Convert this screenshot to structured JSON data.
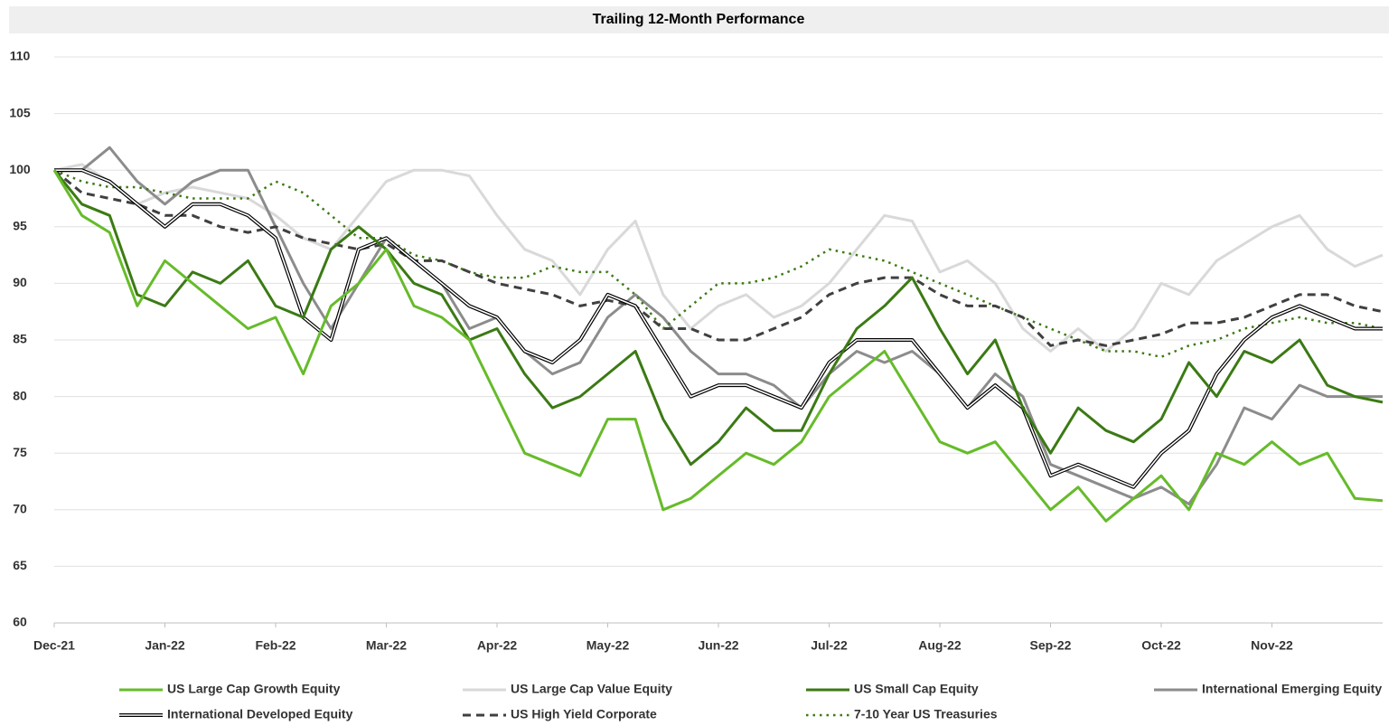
{
  "chart_data": {
    "type": "line",
    "title": "Trailing 12-Month Performance",
    "categories": [
      "Dec-21",
      null,
      null,
      null,
      "Jan-22",
      null,
      null,
      null,
      "Feb-22",
      null,
      null,
      null,
      "Mar-22",
      null,
      null,
      null,
      "Apr-22",
      null,
      null,
      null,
      "May-22",
      null,
      null,
      null,
      "Jun-22",
      null,
      null,
      null,
      "Jul-22",
      null,
      null,
      null,
      "Aug-22",
      null,
      null,
      null,
      "Sep-22",
      null,
      null,
      null,
      "Oct-22",
      null,
      null,
      null,
      "Nov-22",
      null,
      null,
      null,
      null
    ],
    "ylim": [
      60,
      110
    ],
    "yticks": [
      60,
      65,
      70,
      75,
      80,
      85,
      90,
      95,
      100,
      105,
      110
    ],
    "grid": true,
    "legend": "bottom",
    "series": [
      {
        "name": "US Large Cap Growth Equity",
        "color": "#66bb2a",
        "style": "solid",
        "values": [
          100,
          96,
          94.5,
          88,
          92,
          90,
          88,
          86,
          87,
          82,
          88,
          90,
          93,
          88,
          87,
          85,
          80,
          75,
          74,
          73,
          78,
          78,
          70,
          71,
          73,
          75,
          74,
          76,
          80,
          82,
          84,
          80,
          76,
          75,
          76,
          73,
          70,
          72,
          69,
          71,
          73,
          70,
          75,
          74,
          76,
          74,
          75,
          71,
          70.8
        ]
      },
      {
        "name": "US Large Cap Value Equity",
        "color": "#d9d9d9",
        "style": "solid",
        "values": [
          100,
          100.5,
          99,
          97,
          98,
          98.5,
          98,
          97.5,
          96,
          94,
          93,
          96,
          99,
          100,
          100,
          99.5,
          96,
          93,
          92,
          89,
          93,
          95.5,
          89,
          86,
          88,
          89,
          87,
          88,
          90,
          93,
          96,
          95.5,
          91,
          92,
          90,
          86,
          84,
          86,
          84,
          86,
          90,
          89,
          92,
          93.5,
          95,
          96,
          93,
          91.5,
          92.5
        ]
      },
      {
        "name": "US Small Cap Equity",
        "color": "#3b7a14",
        "style": "solid",
        "values": [
          100,
          97,
          96,
          89,
          88,
          91,
          90,
          92,
          88,
          87,
          93,
          95,
          93,
          90,
          89,
          85,
          86,
          82,
          79,
          80,
          82,
          84,
          78,
          74,
          76,
          79,
          77,
          77,
          82,
          86,
          88,
          90.5,
          86,
          82,
          85,
          79,
          75,
          79,
          77,
          76,
          78,
          83,
          80,
          84,
          83,
          85,
          81,
          80,
          79.5
        ]
      },
      {
        "name": "International Emerging Equity",
        "color": "#8c8c8c",
        "style": "solid",
        "values": [
          100,
          100,
          102,
          99,
          97,
          99,
          100,
          100,
          95,
          90,
          86,
          90,
          94,
          92,
          90,
          86,
          87,
          84,
          82,
          83,
          87,
          89,
          87,
          84,
          82,
          82,
          81,
          79,
          82,
          84,
          83,
          84,
          82,
          79,
          82,
          80,
          74,
          73,
          72,
          71,
          72,
          70.5,
          74,
          79,
          78,
          81,
          80,
          80,
          80
        ]
      },
      {
        "name": "International Developed Equity",
        "color": "#000000",
        "style": "double",
        "values": [
          100,
          100,
          99,
          97,
          95,
          97,
          97,
          96,
          94,
          87,
          85,
          93,
          94,
          92,
          90,
          88,
          87,
          84,
          83,
          85,
          89,
          88,
          84,
          80,
          81,
          81,
          80,
          79,
          83,
          85,
          85,
          85,
          82,
          79,
          81,
          79,
          73,
          74,
          73,
          72,
          75,
          77,
          82,
          85,
          87,
          88,
          87,
          86,
          86
        ]
      },
      {
        "name": "US High Yield Corporate",
        "color": "#404040",
        "style": "dashed",
        "values": [
          100,
          98,
          97.5,
          97,
          96,
          96,
          95,
          94.5,
          95,
          94,
          93.5,
          93,
          93.5,
          92,
          92,
          91,
          90,
          89.5,
          89,
          88,
          88.5,
          88,
          86,
          86,
          85,
          85,
          86,
          87,
          89,
          90,
          90.5,
          90.5,
          89,
          88,
          88,
          87,
          84.5,
          85,
          84.5,
          85,
          85.5,
          86.5,
          86.5,
          87,
          88,
          89,
          89,
          88,
          87.5
        ]
      },
      {
        "name": "7-10 Year US Treasuries",
        "color": "#3b7a14",
        "style": "dotted",
        "values": [
          100,
          99,
          98.5,
          98.5,
          98,
          97.5,
          97.5,
          97.5,
          99,
          98,
          96,
          94,
          94,
          92.5,
          92,
          91,
          90.5,
          90.5,
          91.5,
          91,
          91,
          89,
          86,
          88,
          90,
          90,
          90.5,
          91.5,
          93,
          92.5,
          92,
          91,
          90,
          89,
          88,
          87,
          86,
          85,
          84,
          84,
          83.5,
          84.5,
          85,
          86,
          86.5,
          87,
          86.5,
          86.5,
          86
        ]
      }
    ]
  }
}
